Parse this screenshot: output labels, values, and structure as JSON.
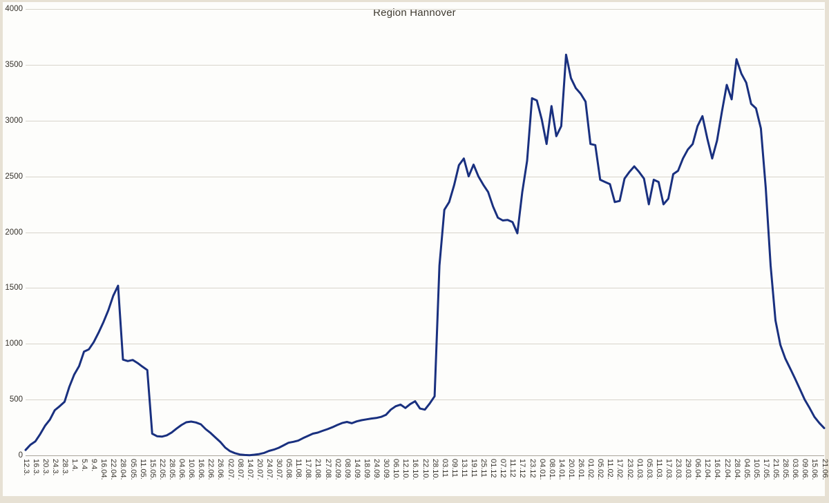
{
  "page": {
    "background": "#e7e1d4",
    "plot_background": "#fdfdfb"
  },
  "chart_data": {
    "type": "line",
    "title": "Region Hannover",
    "series_color": "#19307f",
    "series_stroke_width": 3,
    "gridline_color": "#d8d4cb",
    "axis_line_color": "#a9a59b",
    "label_color": "#35312a",
    "ylim": [
      0,
      4000
    ],
    "ytick_step": 500,
    "yticks": [
      4000,
      3500,
      3000,
      2500,
      2000,
      1500,
      1000,
      500,
      0
    ],
    "grid": true,
    "legend": "none",
    "points_per_category_interval": 2,
    "categories": [
      "12.3.",
      "16.3.",
      "20.3.",
      "24.3.",
      "28.3.",
      "1.4.",
      "5.4.",
      "9.4.",
      "16.04.",
      "22.04.",
      "28.04.",
      "05.05.",
      "11.05.",
      "15.05.",
      "22.05.",
      "28.05.",
      "04.06.",
      "10.06.",
      "16.06.",
      "22.06.",
      "26.06.",
      "02.07.",
      "08.07.",
      "14.07.",
      "20.07.",
      "24.07.",
      "30.07.",
      "05.08.",
      "11.08.",
      "17.08.",
      "21.08.",
      "27.08.",
      "02.09.",
      "08.09.",
      "14.09.",
      "18.09.",
      "24.09.",
      "30.09.",
      "06.10.",
      "12.10.",
      "16.10.",
      "22.10.",
      "28.10.",
      "03.11",
      "09.11",
      "13.11",
      "19.11",
      "25.11",
      "01.12",
      "07.12",
      "11.12",
      "17.12",
      "23.12",
      "04.01.",
      "08.01.",
      "14.01.",
      "20.01.",
      "26.01.",
      "01.02.",
      "05.02.",
      "11.02.",
      "17.02.",
      "23.02.",
      "01.03.",
      "05.03.",
      "11.03.",
      "17.03.",
      "23.03.",
      "29.03.",
      "06.04.",
      "12.04.",
      "16.04.",
      "22.04.",
      "28.04.",
      "04.05.",
      "10.05.",
      "17.05.",
      "21.05.",
      "28.05.",
      "03.06.",
      "09.06.",
      "15.06.",
      "21.06."
    ],
    "values": [
      48,
      95,
      125,
      190,
      265,
      320,
      405,
      440,
      480,
      615,
      725,
      800,
      930,
      950,
      1015,
      1100,
      1195,
      1300,
      1430,
      1520,
      858,
      845,
      855,
      828,
      795,
      765,
      195,
      172,
      168,
      180,
      205,
      240,
      272,
      297,
      303,
      295,
      278,
      235,
      200,
      160,
      120,
      70,
      38,
      20,
      8,
      4,
      2,
      6,
      12,
      22,
      40,
      52,
      68,
      90,
      113,
      122,
      132,
      155,
      175,
      195,
      204,
      220,
      235,
      252,
      272,
      290,
      300,
      288,
      305,
      315,
      323,
      330,
      335,
      345,
      363,
      410,
      440,
      455,
      425,
      460,
      485,
      420,
      410,
      465,
      530,
      1700,
      2200,
      2270,
      2420,
      2600,
      2660,
      2500,
      2605,
      2500,
      2425,
      2360,
      2230,
      2130,
      2105,
      2110,
      2090,
      1990,
      2360,
      2640,
      3200,
      3180,
      3010,
      2790,
      3130,
      2860,
      2950,
      3590,
      3380,
      3290,
      3240,
      3170,
      2790,
      2780,
      2470,
      2450,
      2430,
      2270,
      2280,
      2480,
      2540,
      2590,
      2540,
      2480,
      2250,
      2470,
      2450,
      2250,
      2300,
      2520,
      2550,
      2660,
      2740,
      2790,
      2950,
      3040,
      2840,
      2660,
      2820,
      3080,
      3320,
      3190,
      3550,
      3420,
      3340,
      3150,
      3110,
      2930,
      2400,
      1700,
      1210,
      990,
      870,
      780,
      690,
      595,
      500,
      425,
      345,
      290,
      245
    ]
  }
}
